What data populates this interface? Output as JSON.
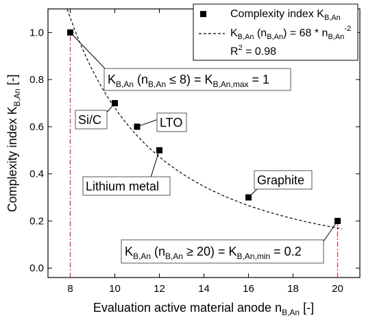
{
  "chart_data": {
    "type": "scatter",
    "xlabel": {
      "main": "Evaluation active material anode n",
      "sub": "B,An",
      "tail": " [-]"
    },
    "ylabel": {
      "main": "Complexity index K",
      "sub": "B,An",
      "tail": " [-]"
    },
    "xlim": [
      7,
      21
    ],
    "ylim": [
      -0.04,
      1.1
    ],
    "xticks": [
      8,
      10,
      12,
      14,
      16,
      18,
      20
    ],
    "yticks": [
      0.0,
      0.2,
      0.4,
      0.6,
      0.8,
      1.0
    ],
    "xtick_labels": [
      "8",
      "10",
      "12",
      "14",
      "16",
      "18",
      "20"
    ],
    "ytick_labels": [
      "0.0",
      "0.2",
      "0.4",
      "0.6",
      "0.8",
      "1.0"
    ],
    "points": [
      {
        "label": "",
        "x": 8,
        "y": 1.0
      },
      {
        "label": "Si/C",
        "x": 10,
        "y": 0.7
      },
      {
        "label": "LTO",
        "x": 11,
        "y": 0.6
      },
      {
        "label": "Lithium metal",
        "x": 12,
        "y": 0.5
      },
      {
        "label": "Graphite",
        "x": 16,
        "y": 0.3
      },
      {
        "label": "",
        "x": 20,
        "y": 0.2
      }
    ],
    "fit_curve": {
      "coefficient": 68,
      "exponent": -2,
      "x_range": [
        7.8,
        20.2
      ],
      "style": "dashed",
      "color": "#000000"
    },
    "boundary_lines": {
      "x": [
        8,
        20
      ],
      "color": "#d62728",
      "style": "dash-dot"
    },
    "legend": {
      "placement": "top-right",
      "series_marker": {
        "main": "Complexity index K",
        "sub": "B,An"
      },
      "fit": {
        "p1": "K",
        "s1": "B,An",
        "p2": " (n",
        "s2": "B,An",
        "p3": ") = 68 * n",
        "s3": "B,An",
        "sup": "-2"
      },
      "r2": {
        "p1": "R",
        "sup": "2",
        "p2": " = 0.98"
      }
    },
    "annotations": {
      "max": {
        "p1": "K",
        "s1": "B,An",
        "p2": " (n",
        "s2": "B,An",
        "p3": " ≤ 8) = K",
        "s3": "B,An,max",
        "p4": " = 1"
      },
      "min": {
        "p1": "K",
        "s1": "B,An",
        "p2": " (n",
        "s2": "B,An",
        "p3": " ≥ 20) = K",
        "s3": "B,An,min",
        "p4": " = 0.2"
      }
    },
    "grid": false
  }
}
